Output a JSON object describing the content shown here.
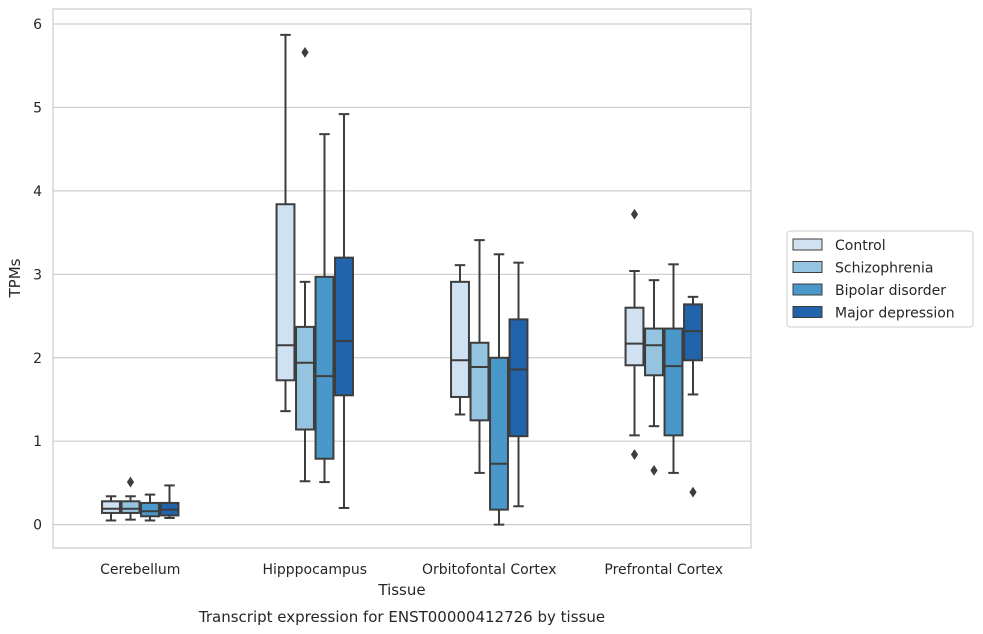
{
  "chart_data": {
    "type": "box",
    "caption": "Transcript expression for ENST00000412726 by tissue",
    "xlabel": "Tissue",
    "ylabel": "TPMs",
    "ylim": [
      -0.28,
      6.18
    ],
    "yticks": [
      "0",
      "1",
      "2",
      "3",
      "4",
      "5",
      "6"
    ],
    "ytick_values": [
      0,
      1,
      2,
      3,
      4,
      5,
      6
    ],
    "grid": "horizontal",
    "legend_position": "right",
    "categories": [
      "Cerebellum",
      "Hipppocampus",
      "Orbitofontal Cortex",
      "Prefrontal Cortex"
    ],
    "series": [
      {
        "name": "Control",
        "color": "#d0e1f2",
        "boxes": [
          {
            "whislo": 0.05,
            "q1": 0.14,
            "med": 0.19,
            "q3": 0.28,
            "whishi": 0.34,
            "fliers": []
          },
          {
            "whislo": 1.36,
            "q1": 1.73,
            "med": 2.15,
            "q3": 3.84,
            "whishi": 5.87,
            "fliers": []
          },
          {
            "whislo": 1.32,
            "q1": 1.53,
            "med": 1.97,
            "q3": 2.91,
            "whishi": 3.11,
            "fliers": []
          },
          {
            "whislo": 1.07,
            "q1": 1.91,
            "med": 2.17,
            "q3": 2.6,
            "whishi": 3.04,
            "fliers": [
              3.72,
              0.84
            ]
          }
        ]
      },
      {
        "name": "Schizophrenia",
        "color": "#94c4df",
        "boxes": [
          {
            "whislo": 0.06,
            "q1": 0.14,
            "med": 0.19,
            "q3": 0.28,
            "whishi": 0.34,
            "fliers": [
              0.51
            ]
          },
          {
            "whislo": 0.52,
            "q1": 1.14,
            "med": 1.94,
            "q3": 2.37,
            "whishi": 2.91,
            "fliers": [
              5.66
            ]
          },
          {
            "whislo": 0.62,
            "q1": 1.25,
            "med": 1.89,
            "q3": 2.18,
            "whishi": 3.41,
            "fliers": []
          },
          {
            "whislo": 1.18,
            "q1": 1.79,
            "med": 2.15,
            "q3": 2.35,
            "whishi": 2.93,
            "fliers": [
              0.65
            ]
          }
        ]
      },
      {
        "name": "Bipolar disorder",
        "color": "#4a98c9",
        "boxes": [
          {
            "whislo": 0.05,
            "q1": 0.1,
            "med": 0.16,
            "q3": 0.26,
            "whishi": 0.36,
            "fliers": []
          },
          {
            "whislo": 0.51,
            "q1": 0.79,
            "med": 1.78,
            "q3": 2.97,
            "whishi": 4.68,
            "fliers": []
          },
          {
            "whislo": 0.0,
            "q1": 0.18,
            "med": 0.73,
            "q3": 2.0,
            "whishi": 3.24,
            "fliers": []
          },
          {
            "whislo": 0.62,
            "q1": 1.07,
            "med": 1.9,
            "q3": 2.35,
            "whishi": 3.12,
            "fliers": []
          }
        ]
      },
      {
        "name": "Major depression",
        "color": "#2164ab",
        "boxes": [
          {
            "whislo": 0.08,
            "q1": 0.11,
            "med": 0.18,
            "q3": 0.26,
            "whishi": 0.47,
            "fliers": []
          },
          {
            "whislo": 0.2,
            "q1": 1.55,
            "med": 2.2,
            "q3": 3.2,
            "whishi": 4.92,
            "fliers": []
          },
          {
            "whislo": 0.22,
            "q1": 1.06,
            "med": 1.86,
            "q3": 2.46,
            "whishi": 3.14,
            "fliers": []
          },
          {
            "whislo": 1.56,
            "q1": 1.97,
            "med": 2.32,
            "q3": 2.64,
            "whishi": 2.73,
            "fliers": [
              0.39
            ]
          }
        ]
      }
    ]
  }
}
